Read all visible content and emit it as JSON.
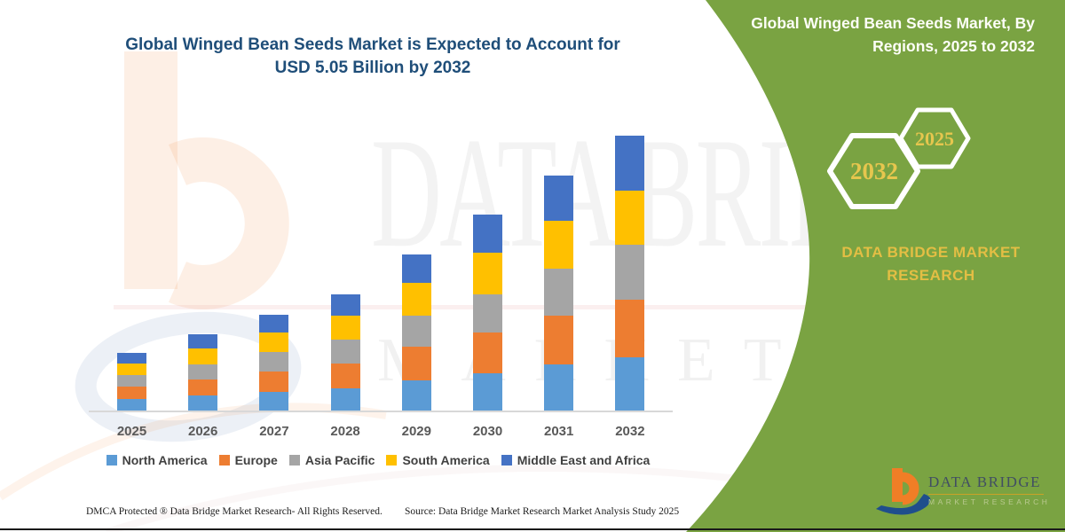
{
  "title": {
    "line1": "Global Winged Bean Seeds Market is Expected to Account for",
    "line2": "USD 5.05 Billion by 2032"
  },
  "panel": {
    "title_line1": "Global Winged Bean Seeds Market, By",
    "title_line2": "Regions, 2025 to 2032",
    "hexagon_large_label": "2032",
    "hexagon_small_label": "2025",
    "brand_line1": "DATA BRIDGE MARKET",
    "brand_line2": "RESEARCH",
    "green_color": "#7AA342",
    "gold_color": "#E3BE44"
  },
  "logo": {
    "name": "DATA BRIDGE",
    "sub": "MARKET RESEARCH",
    "mark_orange": "#F07E26",
    "mark_blue": "#1F4E8C"
  },
  "watermark": {
    "text_top": "DATA BRIDGE",
    "text_bottom": "MARKET RESEARCH"
  },
  "footer": {
    "dmca": "DMCA Protected ® Data Bridge Market Research-  All Rights Reserved.",
    "source": "Source: Data Bridge Market Research  Market Analysis Study 2025"
  },
  "chart_data": {
    "type": "bar",
    "stacked": true,
    "unit": "USD Billion",
    "values_estimated_from_pixels": true,
    "stated_total_2032": 5.05,
    "categories": [
      "2025",
      "2026",
      "2027",
      "2028",
      "2029",
      "2030",
      "2031",
      "2032"
    ],
    "series": [
      {
        "name": "North America",
        "color": "#5B9BD5",
        "values": [
          0.21,
          0.27,
          0.34,
          0.41,
          0.56,
          0.69,
          0.84,
          0.98
        ]
      },
      {
        "name": "Europe",
        "color": "#ED7D31",
        "values": [
          0.23,
          0.3,
          0.38,
          0.46,
          0.62,
          0.75,
          0.91,
          1.05
        ]
      },
      {
        "name": "Asia Pacific",
        "color": "#A5A5A5",
        "values": [
          0.21,
          0.28,
          0.35,
          0.43,
          0.57,
          0.7,
          0.85,
          1.01
        ]
      },
      {
        "name": "South America",
        "color": "#FFC000",
        "values": [
          0.22,
          0.29,
          0.36,
          0.44,
          0.59,
          0.76,
          0.88,
          1.0
        ]
      },
      {
        "name": "Middle East and Africa",
        "color": "#4472C4",
        "values": [
          0.19,
          0.26,
          0.33,
          0.39,
          0.53,
          0.7,
          0.84,
          1.01
        ]
      }
    ],
    "totals": [
      1.06,
      1.4,
      1.76,
      2.13,
      2.87,
      3.6,
      4.32,
      5.05
    ],
    "ylim": [
      0,
      5.05
    ],
    "grid": false,
    "legend_position": "bottom",
    "y_axis_shown": false
  }
}
